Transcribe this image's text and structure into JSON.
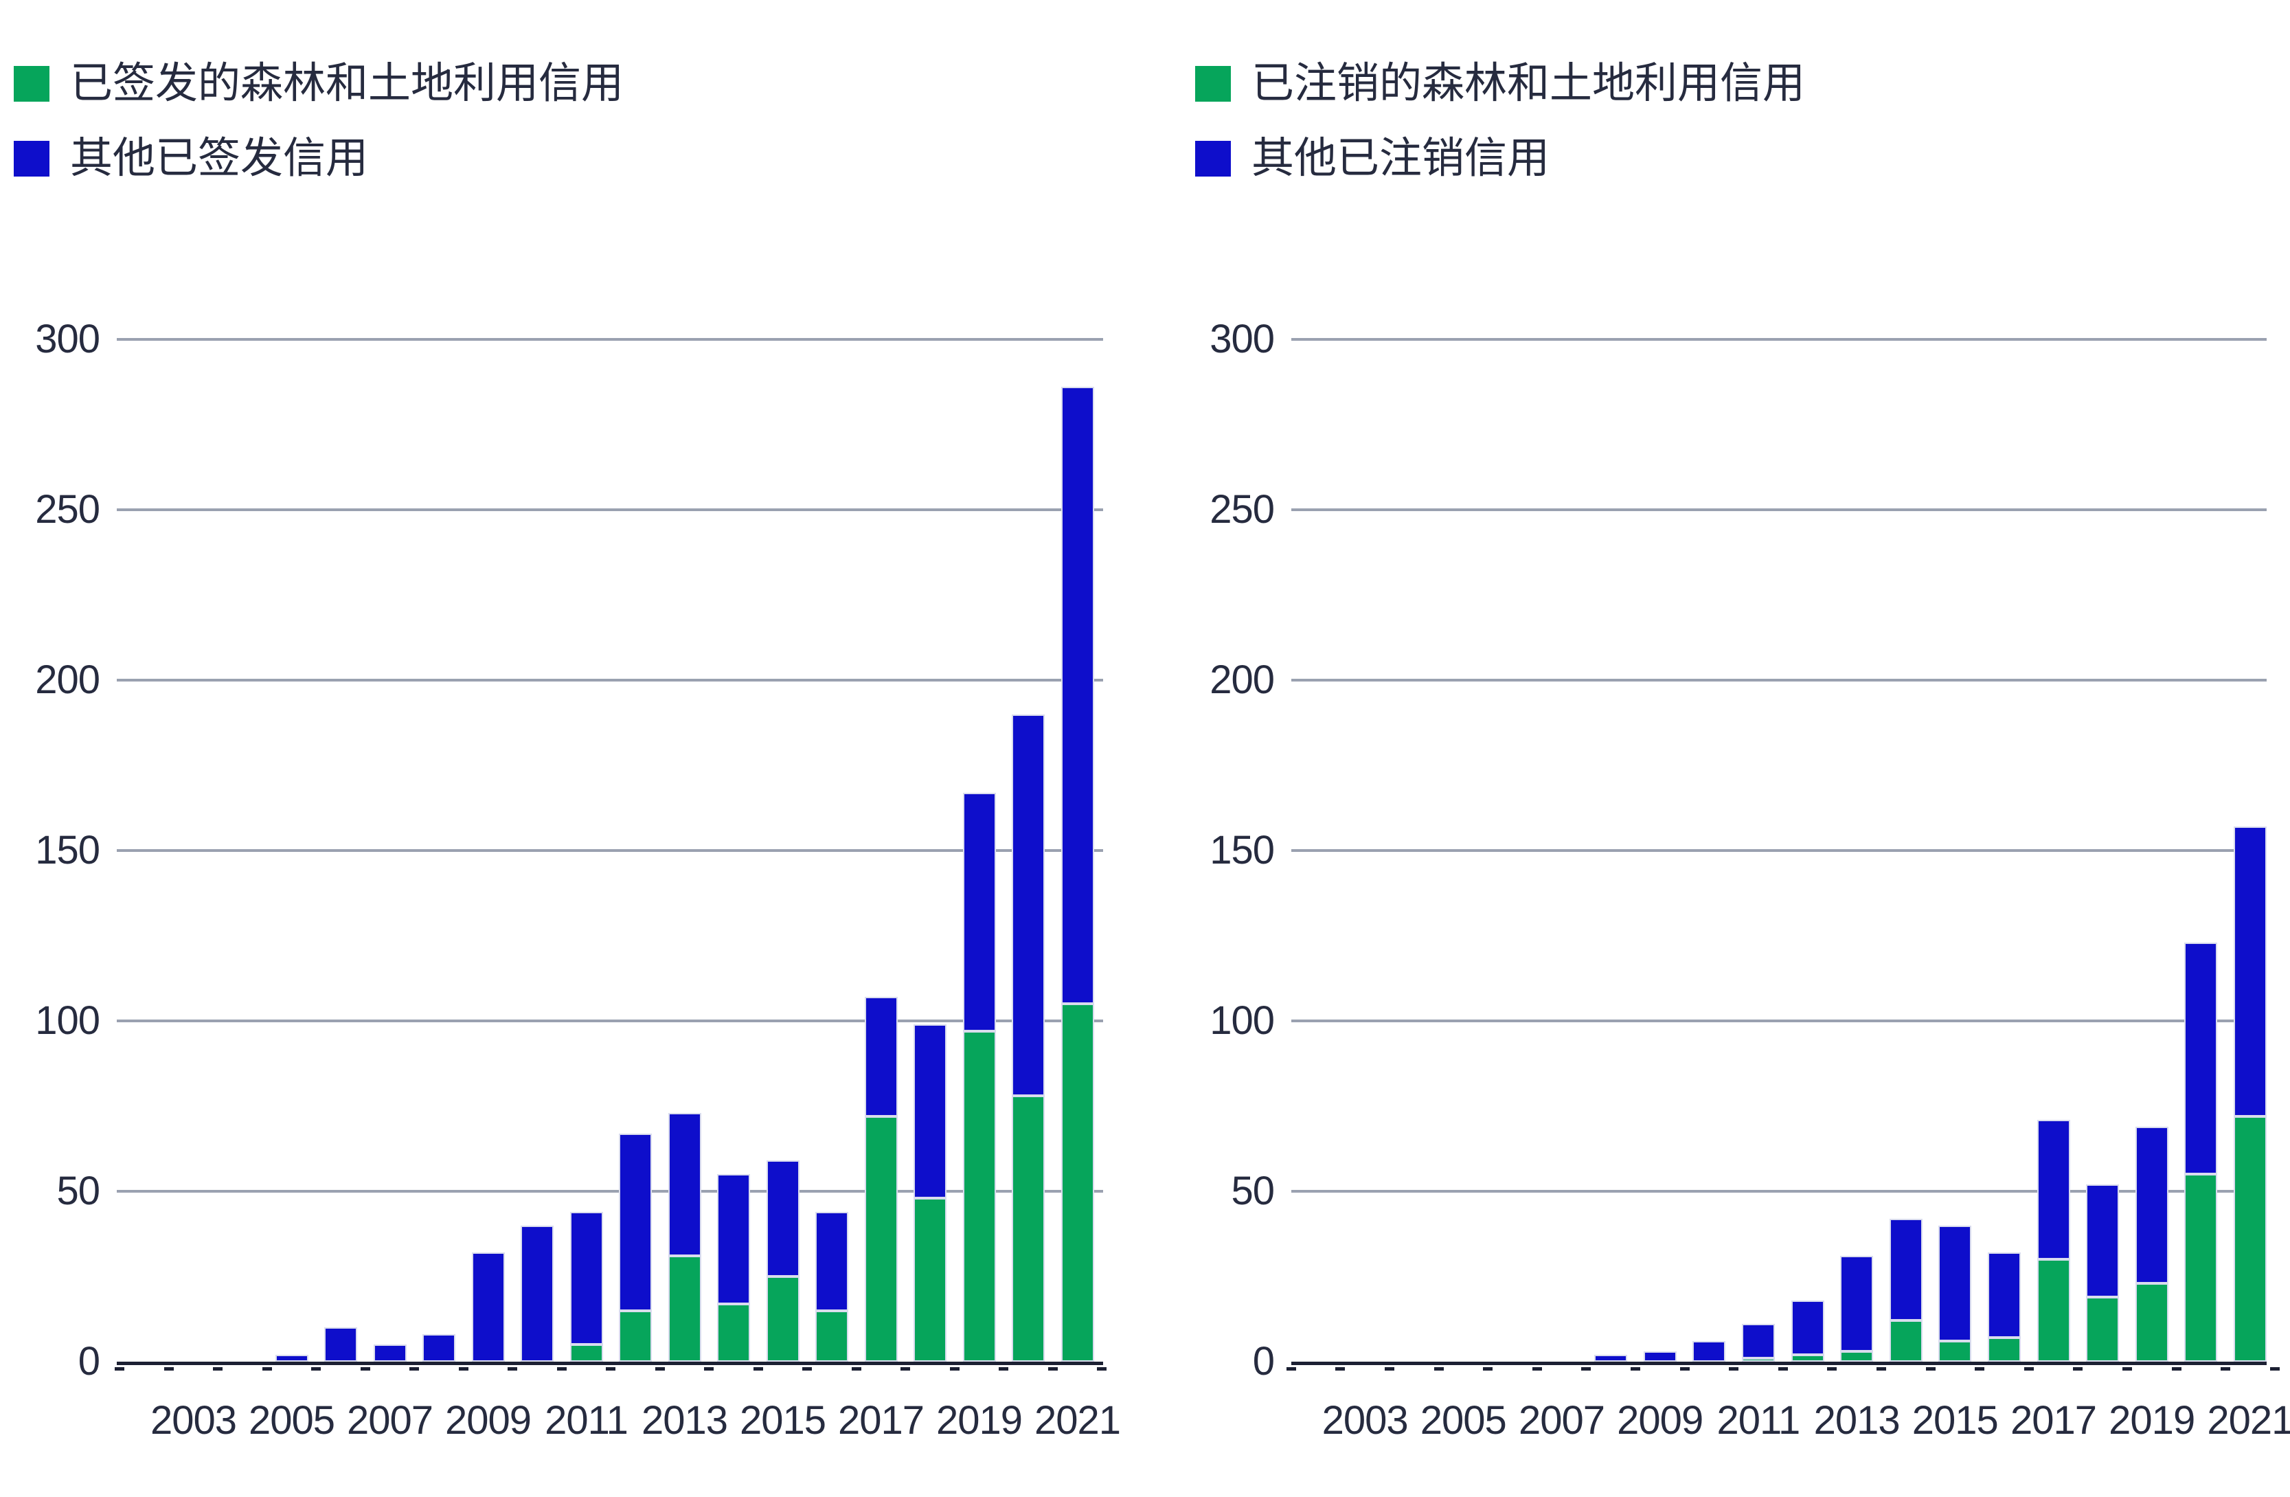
{
  "colors": {
    "background": "#ffffff",
    "green": "#06a55b",
    "blue": "#0e0ecb",
    "gridline": "#9aa1b0",
    "axis": "#1c2033",
    "text": "#262b3f",
    "bar_outline": "#d9dcee"
  },
  "chart_data": [
    {
      "type": "bar",
      "stacked": true,
      "title": "",
      "categories": [
        2002,
        2003,
        2004,
        2005,
        2006,
        2007,
        2008,
        2009,
        2010,
        2011,
        2012,
        2013,
        2014,
        2015,
        2016,
        2017,
        2018,
        2019,
        2020,
        2021
      ],
      "series": [
        {
          "name": "已签发的森林和土地利用信用",
          "color": "#06a55b",
          "values": [
            0,
            0,
            0,
            0,
            0,
            0,
            0,
            0,
            0,
            5,
            15,
            31,
            17,
            25,
            15,
            72,
            48,
            97,
            78,
            105
          ]
        },
        {
          "name": "其他已签发信用",
          "color": "#0e0ecb",
          "values": [
            0,
            0,
            0,
            2,
            10,
            5,
            8,
            32,
            40,
            39,
            52,
            42,
            38,
            34,
            29,
            35,
            51,
            70,
            112,
            181
          ]
        }
      ],
      "totals": [
        0,
        0,
        0,
        2,
        10,
        5,
        8,
        32,
        40,
        44,
        67,
        73,
        55,
        59,
        44,
        107,
        99,
        167,
        190,
        286
      ],
      "ylim": [
        0,
        300
      ],
      "yticks": [
        0,
        50,
        100,
        150,
        200,
        250,
        300
      ],
      "xtick_labels": [
        "2003",
        "2005",
        "2007",
        "2009",
        "2011",
        "2013",
        "2015",
        "2017",
        "2019",
        "2021"
      ],
      "grid": true,
      "legend_position": "top-left"
    },
    {
      "type": "bar",
      "stacked": true,
      "title": "",
      "categories": [
        2002,
        2003,
        2004,
        2005,
        2006,
        2007,
        2008,
        2009,
        2010,
        2011,
        2012,
        2013,
        2014,
        2015,
        2016,
        2017,
        2018,
        2019,
        2020,
        2021
      ],
      "series": [
        {
          "name": "已注销的森林和土地利用信用",
          "color": "#06a55b",
          "values": [
            0,
            0,
            0,
            0,
            0,
            0,
            0,
            0,
            0,
            1,
            2,
            3,
            12,
            6,
            7,
            30,
            19,
            23,
            55,
            72
          ]
        },
        {
          "name": "其他已注销信用",
          "color": "#0e0ecb",
          "values": [
            0,
            0,
            0,
            0,
            0,
            0,
            2,
            3,
            6,
            10,
            16,
            28,
            30,
            34,
            25,
            41,
            33,
            46,
            68,
            85
          ]
        }
      ],
      "totals": [
        0,
        0,
        0,
        0,
        0,
        0,
        2,
        3,
        6,
        11,
        18,
        31,
        42,
        40,
        32,
        71,
        52,
        69,
        123,
        157
      ],
      "ylim": [
        0,
        300
      ],
      "yticks": [
        0,
        50,
        100,
        150,
        200,
        250,
        300
      ],
      "xtick_labels": [
        "2003",
        "2005",
        "2007",
        "2009",
        "2011",
        "2013",
        "2015",
        "2017",
        "2019",
        "2021"
      ],
      "grid": true,
      "legend_position": "top-left"
    }
  ]
}
